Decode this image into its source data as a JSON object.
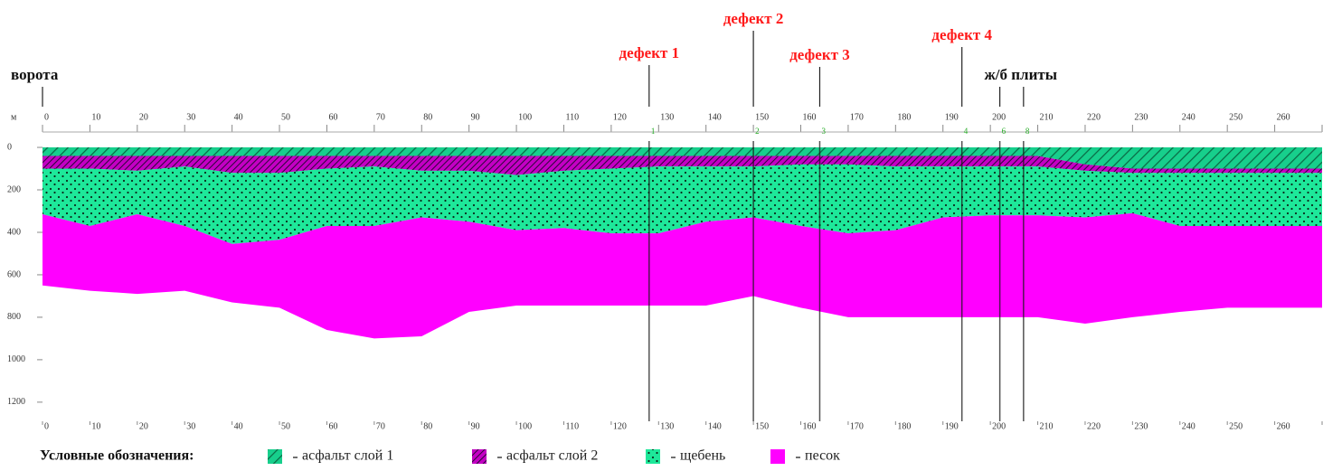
{
  "chart_data": {
    "type": "stacked-area",
    "xlim": [
      0,
      270
    ],
    "ylim": [
      -30,
      1290
    ],
    "y_label": "м",
    "xticks": [
      0,
      10,
      20,
      30,
      40,
      50,
      60,
      70,
      80,
      90,
      100,
      110,
      120,
      130,
      140,
      150,
      160,
      170,
      180,
      190,
      200,
      210,
      220,
      230,
      240,
      250,
      260,
      270
    ],
    "yticks": [
      0,
      200,
      400,
      600,
      800,
      1000,
      1200
    ],
    "x": [
      0,
      10,
      20,
      30,
      40,
      50,
      60,
      70,
      80,
      90,
      100,
      110,
      120,
      130,
      140,
      150,
      160,
      170,
      180,
      190,
      200,
      210,
      220,
      230,
      240,
      250,
      260,
      270
    ],
    "series": [
      {
        "name": "асфальт слой 1",
        "color": "#17cf8c",
        "pattern": "hatch",
        "values": [
          40,
          40,
          40,
          40,
          40,
          40,
          40,
          40,
          40,
          40,
          40,
          40,
          40,
          40,
          40,
          40,
          40,
          40,
          40,
          40,
          40,
          40,
          80,
          100,
          100,
          100,
          100,
          100
        ]
      },
      {
        "name": "асфальт слой 2",
        "color": "#c400c4",
        "pattern": "hatch-dense",
        "values": [
          60,
          60,
          70,
          50,
          80,
          80,
          60,
          50,
          70,
          70,
          90,
          70,
          60,
          50,
          50,
          50,
          40,
          40,
          50,
          50,
          50,
          50,
          30,
          20,
          20,
          20,
          20,
          20
        ]
      },
      {
        "name": "щебень",
        "color": "#1ee89a",
        "pattern": "dots",
        "values": [
          215,
          270,
          205,
          280,
          335,
          315,
          270,
          280,
          220,
          240,
          260,
          270,
          305,
          315,
          260,
          240,
          290,
          325,
          300,
          240,
          230,
          230,
          220,
          190,
          250,
          250,
          250,
          250
        ]
      },
      {
        "name": "песок",
        "color": "#ff00ff",
        "values": [
          335,
          305,
          375,
          305,
          275,
          320,
          490,
          530,
          560,
          425,
          355,
          365,
          340,
          340,
          395,
          370,
          385,
          395,
          410,
          470,
          480,
          480,
          500,
          490,
          405,
          385,
          385,
          385
        ]
      }
    ],
    "annotations": [
      {
        "label": "ворота",
        "x": [
          0
        ],
        "color": "#111111"
      },
      {
        "label": "дефект 1",
        "x": [
          128
        ],
        "tag": "1",
        "color": "#ff1a1a"
      },
      {
        "label": "дефект 2",
        "x": [
          150
        ],
        "tag": "2",
        "color": "#ff1a1a"
      },
      {
        "label": "дефект 3",
        "x": [
          164
        ],
        "tag": "3",
        "color": "#ff1a1a"
      },
      {
        "label": "дефект 4",
        "x": [
          194
        ],
        "tag": "4",
        "color": "#ff1a1a"
      },
      {
        "label": "ж/б плиты",
        "x": [
          202,
          207
        ],
        "tags": [
          "6",
          "8"
        ],
        "color": "#111111"
      }
    ],
    "legend_title": "Условные обозначения:"
  }
}
